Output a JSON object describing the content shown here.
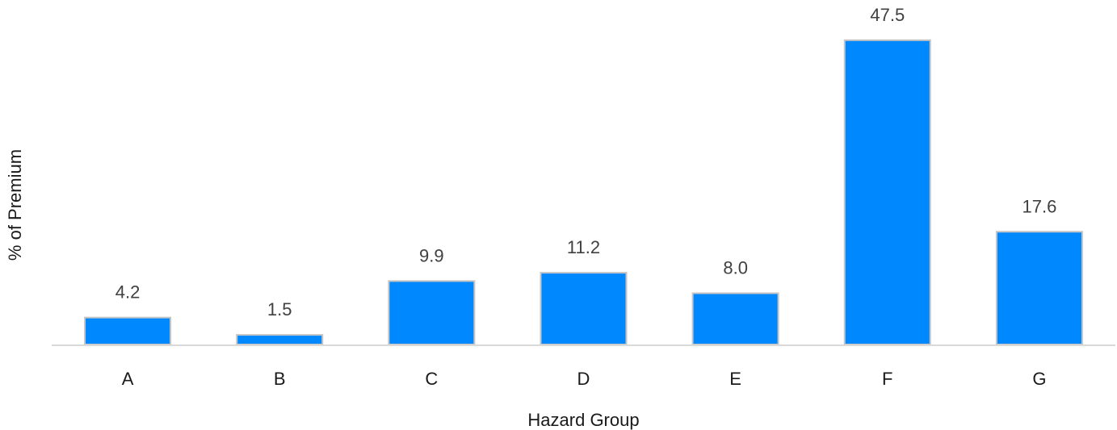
{
  "chart_data": {
    "type": "bar",
    "categories": [
      "A",
      "B",
      "C",
      "D",
      "E",
      "F",
      "G"
    ],
    "values": [
      4.2,
      1.5,
      9.9,
      11.2,
      8.0,
      47.5,
      17.6
    ],
    "value_labels": [
      "4.2",
      "1.5",
      "9.9",
      "11.2",
      "8.0",
      "47.5",
      "17.6"
    ],
    "xlabel": "Hazard Group",
    "ylabel": "% of Premium",
    "ylim": [
      0,
      47.5
    ],
    "grid": false,
    "legend": "none",
    "bar_color": "#0088ff"
  }
}
